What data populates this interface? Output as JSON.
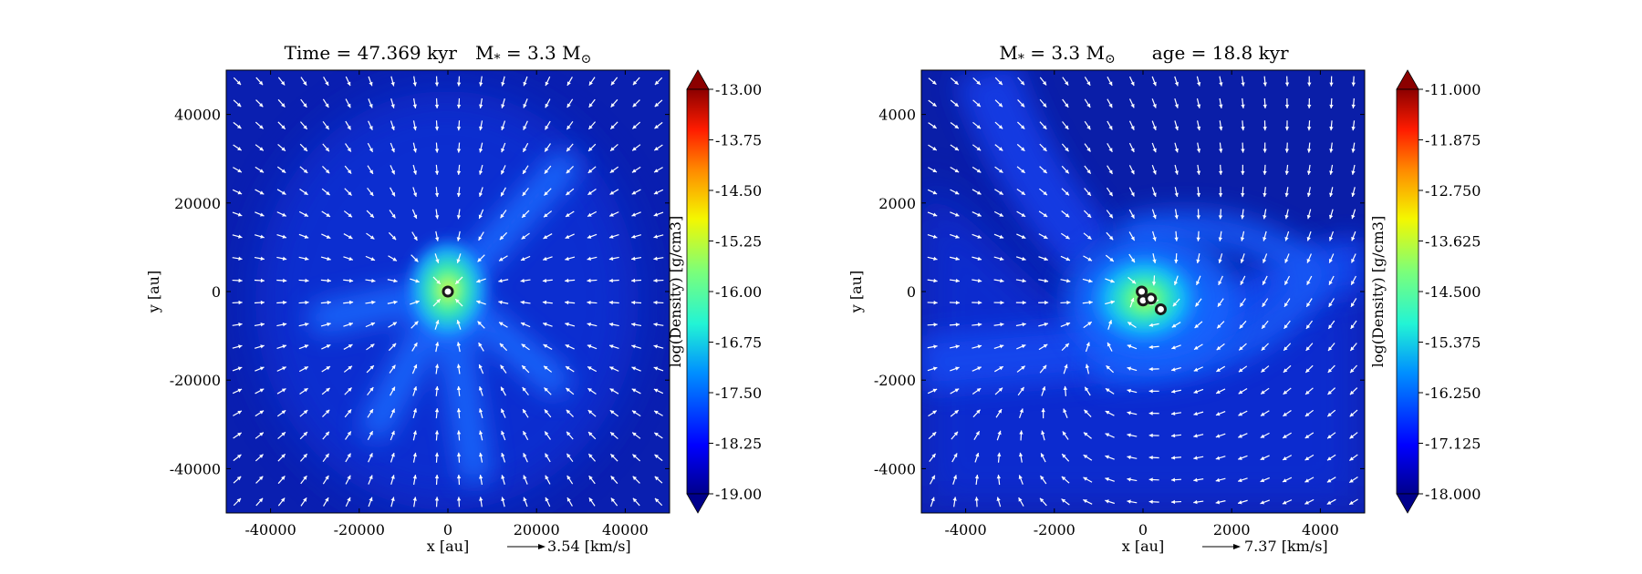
{
  "chart_data": [
    {
      "type": "heatmap",
      "title": "Time = 47.369 kyr    M$_*$ = 3.3 M$_⊙$",
      "title_parts": {
        "left": "Time = 47.369 kyr",
        "mass": "M",
        "mass_sub": "*",
        "mass_eq": " = 3.3 M",
        "sun": "⊙"
      },
      "xlabel": "x [au]",
      "ylabel": "y [au]",
      "xlim": [
        -50000,
        50000
      ],
      "ylim": [
        -50000,
        50000
      ],
      "xticks": [
        -40000,
        -20000,
        0,
        20000,
        40000
      ],
      "yticks": [
        40000,
        20000,
        0,
        -20000,
        -40000
      ],
      "xtick_labels": [
        "-40000",
        "-20000",
        "0",
        "20000",
        "40000"
      ],
      "ytick_labels": [
        "40000",
        "20000",
        "0",
        "-20000",
        "-40000"
      ],
      "colorbar": {
        "label": "log(Density) [g/cm3]",
        "range": [
          -19.0,
          -13.0
        ],
        "tick_values": [
          -13.0,
          -13.75,
          -14.5,
          -15.25,
          -16.0,
          -16.75,
          -17.5,
          -18.25,
          -19.0
        ],
        "tick_labels": [
          "-13.00",
          "-13.75",
          "-14.50",
          "-15.25",
          "-16.00",
          "-16.75",
          "-17.50",
          "-18.25",
          "-19.00"
        ]
      },
      "velocity_key": {
        "label": "3.54 [km/s]",
        "value": 3.54
      },
      "sinks": [
        {
          "x": 0,
          "y": 0
        }
      ],
      "features": {
        "filaments": [
          {
            "x0": 0,
            "y0": 0,
            "x1": 26000,
            "y1": 28000
          },
          {
            "x0": 0,
            "y0": 0,
            "x1": -28000,
            "y1": -6000
          },
          {
            "x0": 0,
            "y0": 0,
            "x1": 6000,
            "y1": -40000
          },
          {
            "x0": 0,
            "y0": 0,
            "x1": 24000,
            "y1": -20000
          },
          {
            "x0": 0,
            "y0": 0,
            "x1": -16000,
            "y1": -30000
          }
        ]
      }
    },
    {
      "type": "heatmap",
      "title": "M$_*$ = 3.3 M$_⊙$        age = 18.8 kyr",
      "title_parts": {
        "mass": "M",
        "mass_sub": "*",
        "mass_eq": " = 3.3 M",
        "sun": "⊙",
        "right": "age = 18.8 kyr"
      },
      "xlabel": "x [au]",
      "ylabel": "y [au]",
      "xlim": [
        -5000,
        5000
      ],
      "ylim": [
        -5000,
        5000
      ],
      "xticks": [
        -4000,
        -2000,
        0,
        2000,
        4000
      ],
      "yticks": [
        4000,
        2000,
        0,
        -2000,
        -4000
      ],
      "xtick_labels": [
        "-4000",
        "-2000",
        "0",
        "2000",
        "4000"
      ],
      "ytick_labels": [
        "4000",
        "2000",
        "0",
        "-2000",
        "-4000"
      ],
      "colorbar": {
        "label": "log(Density) [g/cm3]",
        "range": [
          -18.0,
          -11.0
        ],
        "tick_values": [
          -11.0,
          -11.875,
          -12.75,
          -13.625,
          -14.5,
          -15.375,
          -16.25,
          -17.125,
          -18.0
        ],
        "tick_labels": [
          "-11.000",
          "-11.875",
          "-12.750",
          "-13.625",
          "-14.500",
          "-15.375",
          "-16.250",
          "-17.125",
          "-18.000"
        ]
      },
      "velocity_key": {
        "label": "7.37 [km/s]",
        "value": 7.37
      },
      "sinks": [
        {
          "x": -30,
          "y": 0
        },
        {
          "x": 0,
          "y": -200
        },
        {
          "x": 180,
          "y": -160
        },
        {
          "x": 400,
          "y": -400
        }
      ]
    }
  ]
}
